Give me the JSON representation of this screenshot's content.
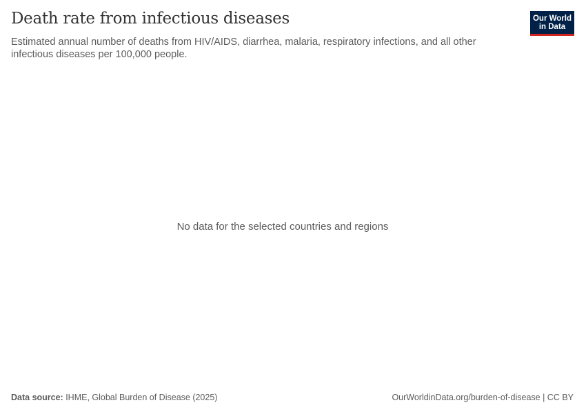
{
  "header": {
    "title": "Death rate from infectious diseases",
    "subtitle": "Estimated annual number of deaths from HIV/AIDS, diarrhea, malaria, respiratory infections, and all other infectious diseases per 100,000 people.",
    "logo": {
      "line1": "Our World",
      "line2": "in Data",
      "bg_color": "#002147",
      "accent_color": "#ce261e"
    }
  },
  "main": {
    "empty_message": "No data for the selected countries and regions"
  },
  "footer": {
    "source_label": "Data source:",
    "source_text": " IHME, Global Burden of Disease (2025)",
    "link": "OurWorldinData.org/burden-of-disease",
    "separator": " | ",
    "license": "CC BY"
  }
}
